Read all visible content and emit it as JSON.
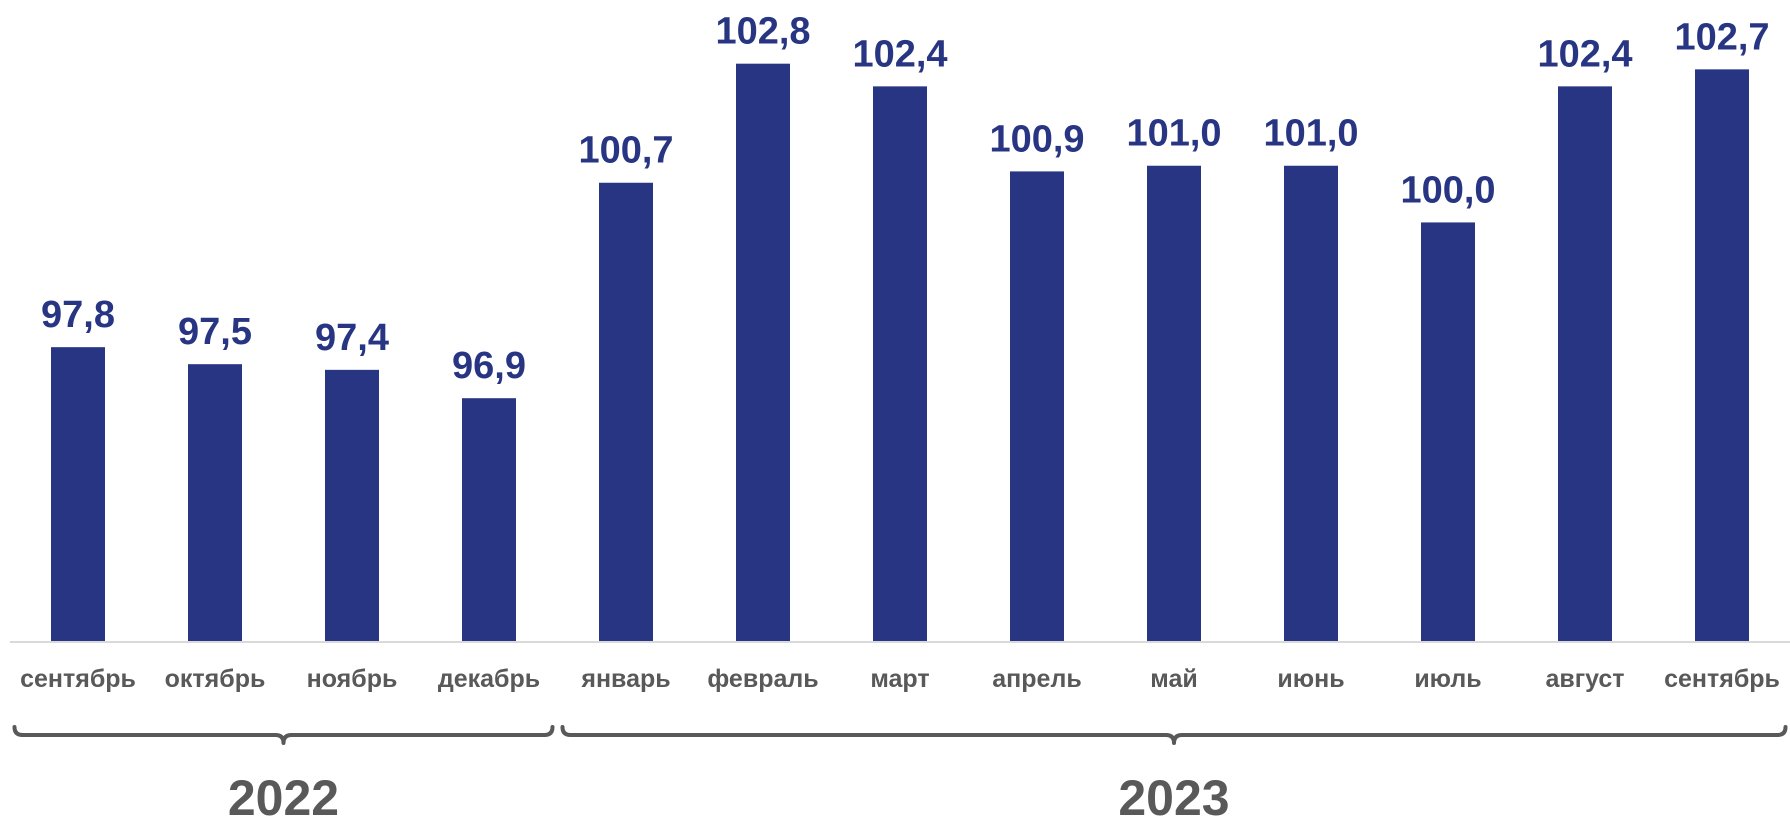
{
  "colors": {
    "bar": "#283583",
    "value_label": "#283583",
    "category_label": "#595959",
    "year_label": "#595959",
    "axis": "#d9d9d9",
    "brace": "#595959"
  },
  "chart_data": {
    "type": "bar",
    "categories": [
      "сентябрь",
      "октябрь",
      "ноябрь",
      "декабрь",
      "январь",
      "февраль",
      "март",
      "апрель",
      "май",
      "июнь",
      "июль",
      "август",
      "сентябрь"
    ],
    "value_labels": [
      "97,8",
      "97,5",
      "97,4",
      "96,9",
      "100,7",
      "102,8",
      "102,4",
      "100,9",
      "101,0",
      "101,0",
      "100,0",
      "102,4",
      "102,7"
    ],
    "series": [
      {
        "values": [
          97.8,
          97.5,
          97.4,
          96.9,
          100.7,
          102.8,
          102.4,
          100.9,
          101.0,
          101.0,
          100.0,
          102.4,
          102.7
        ]
      }
    ],
    "ylim": [
      92.6,
      103.2
    ],
    "grid": false,
    "groups": [
      {
        "label": "2022",
        "from": 0,
        "to": 3
      },
      {
        "label": "2023",
        "from": 4,
        "to": 12
      }
    ]
  }
}
